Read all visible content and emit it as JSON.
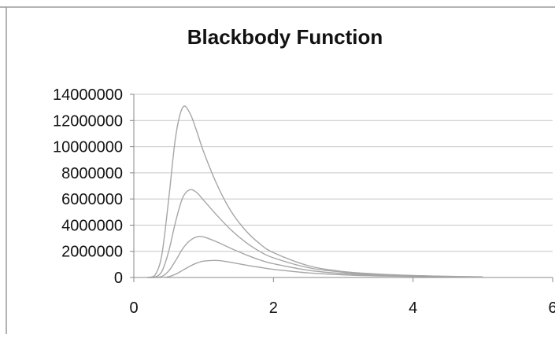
{
  "chart_data": {
    "type": "line",
    "title": "Blackbody Function",
    "xlabel": "",
    "ylabel": "",
    "xlim": [
      0,
      6
    ],
    "ylim": [
      0,
      14000000
    ],
    "x_ticks": [
      0,
      2,
      4,
      6
    ],
    "y_ticks": [
      0,
      2000000,
      4000000,
      6000000,
      8000000,
      10000000,
      12000000,
      14000000
    ],
    "grid": "horizontal",
    "legend": "none",
    "line_color": "#a6a6a6",
    "gridline_color": "#c8c8c8",
    "series": [
      {
        "x": [
          0.2,
          0.3,
          0.4,
          0.5,
          0.6,
          0.7,
          0.8,
          0.9,
          1.0,
          1.2,
          1.4,
          1.6,
          1.8,
          2.0,
          2.5,
          3.0,
          3.5,
          4.0,
          4.5,
          5.0
        ],
        "y": [
          0,
          150000,
          1700000,
          6000000,
          10800000,
          13000000,
          12600000,
          11200000,
          9600000,
          7000000,
          5000000,
          3600000,
          2600000,
          1900000,
          900000,
          450000,
          260000,
          150000,
          90000,
          50000
        ]
      },
      {
        "x": [
          0.2,
          0.3,
          0.4,
          0.5,
          0.6,
          0.7,
          0.8,
          0.9,
          1.0,
          1.2,
          1.4,
          1.6,
          1.8,
          2.0,
          2.5,
          3.0,
          3.5,
          4.0,
          4.5,
          5.0
        ],
        "y": [
          0,
          30000,
          450000,
          2000000,
          4300000,
          6100000,
          6700000,
          6500000,
          5900000,
          4700000,
          3600000,
          2700000,
          2000000,
          1500000,
          750000,
          400000,
          230000,
          140000,
          80000,
          50000
        ]
      },
      {
        "x": [
          0.2,
          0.3,
          0.4,
          0.5,
          0.6,
          0.7,
          0.8,
          0.9,
          1.0,
          1.2,
          1.4,
          1.6,
          1.8,
          2.0,
          2.5,
          3.0,
          3.5,
          4.0,
          4.5,
          5.0
        ],
        "y": [
          0,
          5000,
          80000,
          500000,
          1300000,
          2200000,
          2800000,
          3100000,
          3100000,
          2700000,
          2200000,
          1750000,
          1350000,
          1050000,
          550000,
          300000,
          180000,
          110000,
          70000,
          40000
        ]
      },
      {
        "x": [
          0.2,
          0.3,
          0.4,
          0.5,
          0.6,
          0.7,
          0.8,
          0.9,
          1.0,
          1.2,
          1.4,
          1.6,
          1.8,
          2.0,
          2.5,
          3.0,
          3.5,
          4.0,
          4.5,
          5.0
        ],
        "y": [
          0,
          0,
          5000,
          60000,
          250000,
          550000,
          850000,
          1100000,
          1250000,
          1300000,
          1150000,
          950000,
          780000,
          620000,
          350000,
          200000,
          120000,
          80000,
          50000,
          30000
        ]
      }
    ]
  }
}
